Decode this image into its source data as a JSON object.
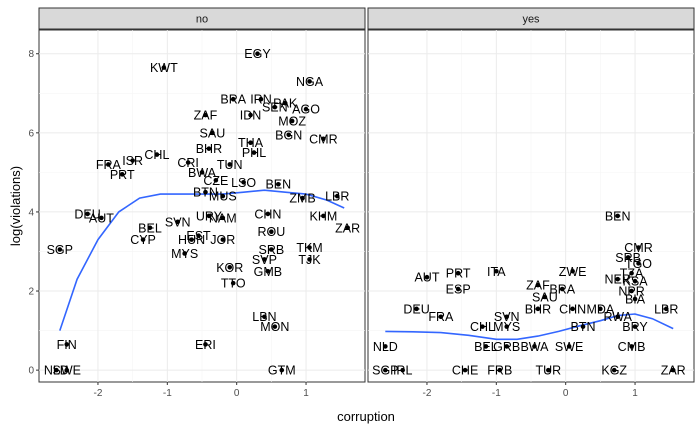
{
  "chart_data": {
    "type": "scatter",
    "facet_strips": [
      "no",
      "yes"
    ],
    "xlabel": "corruption",
    "ylabel": "log(violations)",
    "xticks": [
      "-2",
      "-1",
      "0",
      "1"
    ],
    "yticks": [
      "0",
      "2",
      "4",
      "6",
      "8"
    ],
    "xlim": [
      -2.85,
      1.85
    ],
    "ylim": [
      -0.3,
      8.6
    ],
    "smooth_color": "#3366ff",
    "grid": true,
    "panels": [
      {
        "strip": "no",
        "points": [
          {
            "label": "EGY",
            "x": 0.3,
            "y": 8.0
          },
          {
            "label": "KWT",
            "x": -1.05,
            "y": 7.65
          },
          {
            "label": "NGA",
            "x": 1.05,
            "y": 7.3
          },
          {
            "label": "BRA",
            "x": -0.05,
            "y": 6.85
          },
          {
            "label": "IRN",
            "x": 0.35,
            "y": 6.85
          },
          {
            "label": "PAK",
            "x": 0.7,
            "y": 6.75
          },
          {
            "label": "SEN",
            "x": 0.55,
            "y": 6.65
          },
          {
            "label": "AGO",
            "x": 1.0,
            "y": 6.6
          },
          {
            "label": "ZAF",
            "x": -0.45,
            "y": 6.45
          },
          {
            "label": "IDN",
            "x": 0.2,
            "y": 6.45
          },
          {
            "label": "MOZ",
            "x": 0.8,
            "y": 6.3
          },
          {
            "label": "SAU",
            "x": -0.35,
            "y": 6.0
          },
          {
            "label": "BGN",
            "x": 0.75,
            "y": 5.95
          },
          {
            "label": "CMR",
            "x": 1.25,
            "y": 5.85
          },
          {
            "label": "THA",
            "x": 0.2,
            "y": 5.75
          },
          {
            "label": "BHR",
            "x": -0.4,
            "y": 5.6
          },
          {
            "label": "PHL",
            "x": 0.25,
            "y": 5.5
          },
          {
            "label": "CHL",
            "x": -1.15,
            "y": 5.45
          },
          {
            "label": "ISR",
            "x": -1.5,
            "y": 5.3
          },
          {
            "label": "CRI",
            "x": -0.7,
            "y": 5.25
          },
          {
            "label": "FRA",
            "x": -1.85,
            "y": 5.2
          },
          {
            "label": "TUN",
            "x": -0.1,
            "y": 5.2
          },
          {
            "label": "PRT",
            "x": -1.65,
            "y": 4.95
          },
          {
            "label": "BWA",
            "x": -0.5,
            "y": 5.0
          },
          {
            "label": "CZE",
            "x": -0.3,
            "y": 4.8
          },
          {
            "label": "LSO",
            "x": 0.1,
            "y": 4.75
          },
          {
            "label": "BEN",
            "x": 0.6,
            "y": 4.7
          },
          {
            "label": "BTN",
            "x": -0.45,
            "y": 4.5
          },
          {
            "label": "LBR",
            "x": 1.45,
            "y": 4.4
          },
          {
            "label": "MUS",
            "x": -0.2,
            "y": 4.4
          },
          {
            "label": "ZMB",
            "x": 0.95,
            "y": 4.35
          },
          {
            "label": "DEU",
            "x": -2.15,
            "y": 3.95
          },
          {
            "label": "AUT",
            "x": -1.95,
            "y": 3.85
          },
          {
            "label": "URY",
            "x": -0.4,
            "y": 3.9
          },
          {
            "label": "NAM",
            "x": -0.2,
            "y": 3.85
          },
          {
            "label": "CHN",
            "x": 0.45,
            "y": 3.95
          },
          {
            "label": "SVN",
            "x": -0.85,
            "y": 3.75
          },
          {
            "label": "KHM",
            "x": 1.25,
            "y": 3.9
          },
          {
            "label": "ZAR",
            "x": 1.6,
            "y": 3.6
          },
          {
            "label": "BEL",
            "x": -1.25,
            "y": 3.6
          },
          {
            "label": "EST",
            "x": -0.55,
            "y": 3.4
          },
          {
            "label": "ROU",
            "x": 0.5,
            "y": 3.5
          },
          {
            "label": "CYP",
            "x": -1.35,
            "y": 3.3
          },
          {
            "label": "HUN",
            "x": -0.65,
            "y": 3.3
          },
          {
            "label": "JOR",
            "x": -0.2,
            "y": 3.3
          },
          {
            "label": "SGP",
            "x": -2.55,
            "y": 3.05
          },
          {
            "label": "TKM",
            "x": 1.05,
            "y": 3.1
          },
          {
            "label": "SRB",
            "x": 0.5,
            "y": 3.05
          },
          {
            "label": "MYS",
            "x": -0.75,
            "y": 2.95
          },
          {
            "label": "SVP",
            "x": 0.4,
            "y": 2.8
          },
          {
            "label": "TJK",
            "x": 1.05,
            "y": 2.8
          },
          {
            "label": "KOR",
            "x": -0.1,
            "y": 2.6
          },
          {
            "label": "GMB",
            "x": 0.45,
            "y": 2.5
          },
          {
            "label": "TTO",
            "x": -0.05,
            "y": 2.2
          },
          {
            "label": "LBN",
            "x": 0.4,
            "y": 1.35
          },
          {
            "label": "MON",
            "x": 0.55,
            "y": 1.1
          },
          {
            "label": "FIN",
            "x": -2.45,
            "y": 0.65
          },
          {
            "label": "ERI",
            "x": -0.45,
            "y": 0.65
          },
          {
            "label": "NLD",
            "x": -2.6,
            "y": 0.0
          },
          {
            "label": "SWE",
            "x": -2.45,
            "y": 0.0
          },
          {
            "label": "GTM",
            "x": 0.65,
            "y": 0.0
          }
        ],
        "smooth": [
          {
            "x": -2.55,
            "y": 1.0
          },
          {
            "x": -2.3,
            "y": 2.3
          },
          {
            "x": -2.0,
            "y": 3.3
          },
          {
            "x": -1.7,
            "y": 4.0
          },
          {
            "x": -1.4,
            "y": 4.35
          },
          {
            "x": -1.1,
            "y": 4.45
          },
          {
            "x": -0.8,
            "y": 4.45
          },
          {
            "x": -0.5,
            "y": 4.45
          },
          {
            "x": -0.2,
            "y": 4.45
          },
          {
            "x": 0.1,
            "y": 4.5
          },
          {
            "x": 0.4,
            "y": 4.55
          },
          {
            "x": 0.7,
            "y": 4.5
          },
          {
            "x": 1.0,
            "y": 4.45
          },
          {
            "x": 1.3,
            "y": 4.3
          },
          {
            "x": 1.55,
            "y": 4.1
          }
        ]
      },
      {
        "strip": "yes",
        "points": [
          {
            "label": "BEN",
            "x": 0.75,
            "y": 3.9
          },
          {
            "label": "CMR",
            "x": 1.05,
            "y": 3.1
          },
          {
            "label": "SRB",
            "x": 0.9,
            "y": 2.85
          },
          {
            "label": "TGO",
            "x": 1.05,
            "y": 2.7
          },
          {
            "label": "ITA",
            "x": -1.0,
            "y": 2.5
          },
          {
            "label": "ZWE",
            "x": 0.1,
            "y": 2.5
          },
          {
            "label": "PRT",
            "x": -1.55,
            "y": 2.45
          },
          {
            "label": "AUT",
            "x": -2.0,
            "y": 2.35
          },
          {
            "label": "TZA",
            "x": 0.95,
            "y": 2.45
          },
          {
            "label": "KSA",
            "x": 1.0,
            "y": 2.25
          },
          {
            "label": "NER",
            "x": 0.75,
            "y": 2.3
          },
          {
            "label": "ZAF",
            "x": -0.4,
            "y": 2.15
          },
          {
            "label": "ESP",
            "x": -1.55,
            "y": 2.05
          },
          {
            "label": "BRA",
            "x": -0.05,
            "y": 2.05
          },
          {
            "label": "NPR",
            "x": 0.95,
            "y": 2.0
          },
          {
            "label": "SAU",
            "x": -0.3,
            "y": 1.85
          },
          {
            "label": "BIA",
            "x": 1.0,
            "y": 1.8
          },
          {
            "label": "DEU",
            "x": -2.15,
            "y": 1.55
          },
          {
            "label": "BHR",
            "x": -0.4,
            "y": 1.55
          },
          {
            "label": "CHN",
            "x": 0.1,
            "y": 1.55
          },
          {
            "label": "LBR",
            "x": 1.45,
            "y": 1.55
          },
          {
            "label": "MDA",
            "x": 0.5,
            "y": 1.55
          },
          {
            "label": "FRA",
            "x": -1.8,
            "y": 1.35
          },
          {
            "label": "SVN",
            "x": -0.85,
            "y": 1.35
          },
          {
            "label": "RWA",
            "x": 0.75,
            "y": 1.35
          },
          {
            "label": "CHL",
            "x": -1.2,
            "y": 1.1
          },
          {
            "label": "MYS",
            "x": -0.85,
            "y": 1.1
          },
          {
            "label": "BRY",
            "x": 1.0,
            "y": 1.1
          },
          {
            "label": "BTN",
            "x": 0.25,
            "y": 1.1
          },
          {
            "label": "NLD",
            "x": -2.6,
            "y": 0.6
          },
          {
            "label": "BEL",
            "x": -1.15,
            "y": 0.6
          },
          {
            "label": "GRB",
            "x": -0.85,
            "y": 0.6
          },
          {
            "label": "BWA",
            "x": -0.45,
            "y": 0.6
          },
          {
            "label": "SWE",
            "x": 0.05,
            "y": 0.6
          },
          {
            "label": "CMB",
            "x": 0.95,
            "y": 0.6
          },
          {
            "label": "SGP",
            "x": -2.6,
            "y": 0.0
          },
          {
            "label": "IRL",
            "x": -2.35,
            "y": 0.0
          },
          {
            "label": "CHE",
            "x": -1.45,
            "y": 0.0
          },
          {
            "label": "FRB",
            "x": -0.95,
            "y": 0.0
          },
          {
            "label": "TUR",
            "x": -0.25,
            "y": 0.0
          },
          {
            "label": "KGZ",
            "x": 0.7,
            "y": 0.0
          },
          {
            "label": "ZAR",
            "x": 1.55,
            "y": 0.0
          }
        ],
        "smooth": [
          {
            "x": -2.6,
            "y": 0.98
          },
          {
            "x": -2.2,
            "y": 0.97
          },
          {
            "x": -1.8,
            "y": 0.95
          },
          {
            "x": -1.4,
            "y": 0.88
          },
          {
            "x": -1.0,
            "y": 0.78
          },
          {
            "x": -0.7,
            "y": 0.78
          },
          {
            "x": -0.4,
            "y": 0.86
          },
          {
            "x": -0.1,
            "y": 0.98
          },
          {
            "x": 0.2,
            "y": 1.12
          },
          {
            "x": 0.5,
            "y": 1.25
          },
          {
            "x": 0.75,
            "y": 1.38
          },
          {
            "x": 1.0,
            "y": 1.42
          },
          {
            "x": 1.25,
            "y": 1.3
          },
          {
            "x": 1.55,
            "y": 1.05
          }
        ]
      }
    ]
  }
}
